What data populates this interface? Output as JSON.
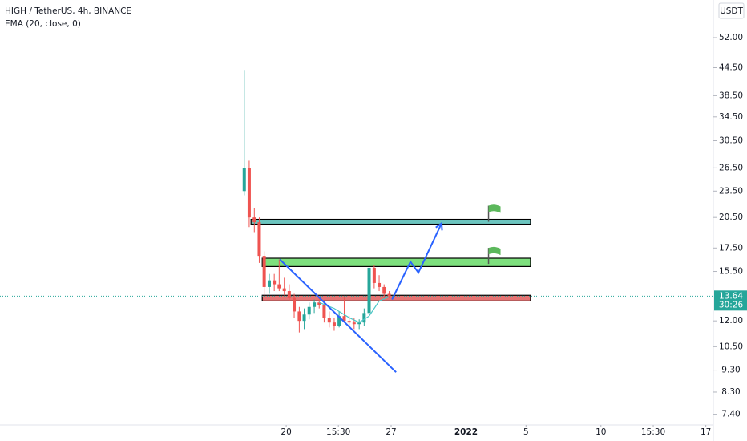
{
  "chart_data": {
    "type": "candlestick",
    "title": "HIGH / TetherUS, 4h, BINANCE",
    "currency": "USDT",
    "log_scale": true,
    "ylim": [
      7.0,
      63.2
    ],
    "yticks": [
      {
        "value": 52,
        "label": "52.00"
      },
      {
        "value": 44.5,
        "label": "44.50"
      },
      {
        "value": 38.5,
        "label": "38.50"
      },
      {
        "value": 34.5,
        "label": "34.50"
      },
      {
        "value": 30.5,
        "label": "30.50"
      },
      {
        "value": 26.5,
        "label": "26.50"
      },
      {
        "value": 23.5,
        "label": "23.50"
      },
      {
        "value": 20.5,
        "label": "20.50"
      },
      {
        "value": 17.5,
        "label": "17.50"
      },
      {
        "value": 15.5,
        "label": "15.50"
      },
      {
        "value": 12,
        "label": "12.00"
      },
      {
        "value": 10.5,
        "label": "10.50"
      },
      {
        "value": 9.3,
        "label": "9.30"
      },
      {
        "value": 8.3,
        "label": "8.30"
      },
      {
        "value": 7.4,
        "label": "7.40"
      }
    ],
    "xlim": [
      -19.1,
      28.5
    ],
    "xticks": [
      {
        "value": 0,
        "label": "20"
      },
      {
        "value": 3.48,
        "label": "15:30"
      },
      {
        "value": 7,
        "label": "27"
      },
      {
        "value": 12,
        "label": "2022"
      },
      {
        "value": 16,
        "label": "5"
      },
      {
        "value": 21,
        "label": "10"
      },
      {
        "value": 24.49,
        "label": "15:30"
      },
      {
        "value": 28,
        "label": "17"
      }
    ],
    "x": [
      -2.8,
      -2.47,
      -2.13,
      -1.8,
      -1.47,
      -1.13,
      -0.8,
      -0.47,
      -0.13,
      0.2,
      0.53,
      0.87,
      1.2,
      1.53,
      1.87,
      2.2,
      2.53,
      2.87,
      3.2,
      3.53,
      3.87,
      4.2,
      4.53,
      4.87,
      5.2,
      5.53,
      5.87,
      6.2,
      6.53,
      6.87
    ],
    "open": [
      23.5,
      26.5,
      20.5,
      20,
      16.8,
      14.3,
      14.8,
      14.5,
      14.2,
      14.0,
      13.5,
      12.6,
      12.0,
      12.4,
      12.9,
      13.2,
      13.0,
      12.2,
      11.9,
      11.7,
      12.3,
      12.0,
      11.9,
      11.8,
      11.9,
      12.5,
      15.8,
      14.6,
      14.3,
      13.8
    ],
    "high": [
      44,
      27.5,
      21.5,
      20.5,
      17.2,
      15.3,
      15.3,
      16.5,
      15,
      14.5,
      13.8,
      12.9,
      12.8,
      13.2,
      13.4,
      13.6,
      13.2,
      12.6,
      12.2,
      12.6,
      13.6,
      12.3,
      12.2,
      12.1,
      12.8,
      16.0,
      16.0,
      15.2,
      14.5,
      14.0
    ],
    "low": [
      23,
      19.5,
      19,
      16.2,
      13.7,
      13.8,
      14,
      14,
      13.7,
      13.3,
      12.2,
      11.3,
      11.5,
      12.1,
      12.5,
      12.8,
      11.9,
      11.6,
      11.4,
      11.6,
      11.9,
      11.6,
      11.5,
      11.5,
      11.7,
      12.4,
      14.2,
      14.0,
      13.5,
      13.5
    ],
    "close": [
      26.5,
      20.5,
      20,
      16.8,
      14.3,
      14.8,
      14.5,
      14.2,
      14.0,
      13.5,
      12.6,
      12.0,
      12.4,
      12.9,
      13.2,
      13.0,
      12.2,
      11.9,
      11.7,
      12.3,
      12.0,
      11.9,
      11.8,
      11.9,
      12.5,
      15.8,
      14.6,
      14.3,
      13.8,
      13.64
    ],
    "up_color": "#26a69a",
    "down_color": "#ef5350",
    "ema": {
      "name": "EMA (20, close, 0)",
      "color": "#4ac7c7",
      "x": [
        2.2,
        3.2,
        4.2,
        4.87,
        5.53,
        6.2,
        6.87
      ],
      "values": [
        13.2,
        12.8,
        12.2,
        11.9,
        12.3,
        13.3,
        13.6
      ]
    },
    "last_price": 13.64,
    "countdown": "30:26",
    "zones": [
      {
        "x": [
          -2.35,
          16.3
        ],
        "y": [
          19.8,
          20.3
        ],
        "color": "#6cc5bf"
      },
      {
        "x": [
          -1.6,
          16.3
        ],
        "y": [
          15.9,
          16.6
        ],
        "color": "#7ee07e"
      },
      {
        "x": [
          -1.6,
          16.3
        ],
        "y": [
          13.3,
          13.7
        ],
        "color": "#e57373"
      }
    ],
    "trend_line": {
      "x": [
        -0.43,
        7.33
      ],
      "y": [
        16.5,
        9.2
      ],
      "color": "#2962ff"
    },
    "projection": {
      "x": [
        7.06,
        8.29,
        8.82,
        10.37
      ],
      "y": [
        13.4,
        16.3,
        15.4,
        19.9
      ],
      "color": "#2962ff"
    },
    "flags": [
      {
        "x": 13.5,
        "y": 20.9
      },
      {
        "x": 13.5,
        "y": 16.8
      }
    ],
    "flag_color": "#5cb85c"
  }
}
